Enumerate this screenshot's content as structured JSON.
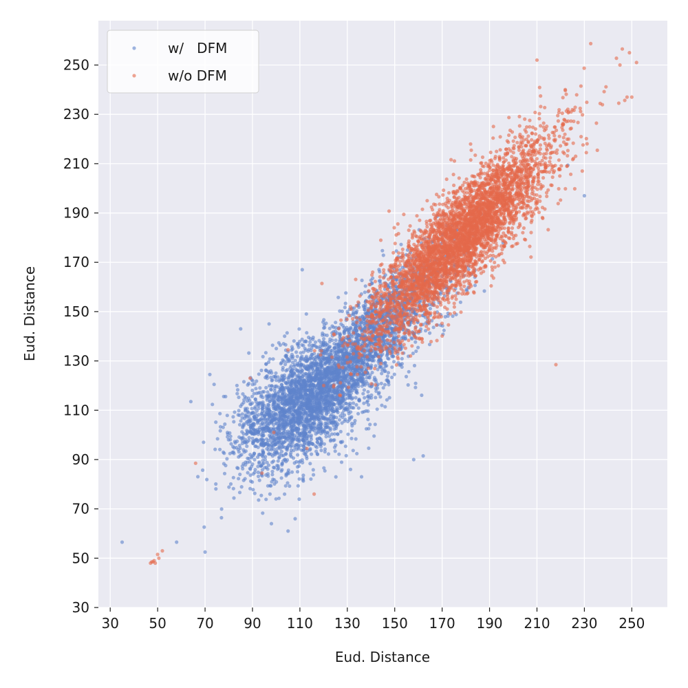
{
  "chart_data": {
    "type": "scatter",
    "xlabel": "Eud. Distance",
    "ylabel": "Eud. Distance",
    "xlim": [
      25,
      265
    ],
    "ylim": [
      30,
      268
    ],
    "xticks": [
      30,
      50,
      70,
      90,
      110,
      130,
      150,
      170,
      190,
      210,
      230,
      250
    ],
    "yticks": [
      30,
      50,
      70,
      90,
      110,
      130,
      150,
      170,
      190,
      210,
      230,
      250
    ],
    "xtick_labels": [
      "30",
      "50",
      "70",
      "90",
      "110",
      "130",
      "150",
      "170",
      "190",
      "210",
      "230",
      "250"
    ],
    "ytick_labels": [
      "30",
      "50",
      "70",
      "90",
      "110",
      "130",
      "150",
      "170",
      "190",
      "210",
      "230",
      "250"
    ],
    "grid": true,
    "legend_position": "top-left",
    "colors": {
      "w_dfm": "#5f83cb",
      "wo_dfm": "#e4694b",
      "background": "#eaeaf2",
      "grid": "#ffffff"
    },
    "series": [
      {
        "name": "w/   DFM",
        "color": "#5f83cb",
        "cloud": {
          "points": 2600,
          "mean": [
            112,
            113
          ],
          "sd": [
            15,
            14
          ],
          "correlation": 0.55,
          "seed": 7,
          "plus_cloud_from": [
            120,
            160,
            1800
          ]
        },
        "points": [
          [
            35,
            56.5
          ],
          [
            70,
            52.5
          ],
          [
            58,
            56.5
          ],
          [
            105,
            61
          ],
          [
            108,
            66
          ],
          [
            98,
            64
          ],
          [
            158,
            90
          ],
          [
            162,
            91.5
          ],
          [
            136,
            83
          ],
          [
            230,
            197
          ],
          [
            64,
            113.5
          ],
          [
            72,
            124.5
          ],
          [
            85,
            143
          ],
          [
            97,
            145
          ],
          [
            111,
            167
          ]
        ]
      },
      {
        "name": "w/o DFM",
        "color": "#e4694b",
        "cloud": {
          "points": 4400,
          "mean": [
            178,
            180
          ],
          "sd": [
            19,
            20
          ],
          "correlation": 0.86,
          "seed": 11
        },
        "points": [
          [
            47,
            48
          ],
          [
            48,
            48.5
          ],
          [
            48.5,
            49
          ],
          [
            49,
            48
          ],
          [
            47.5,
            48.5
          ],
          [
            50,
            51.5
          ],
          [
            50.5,
            50
          ],
          [
            52,
            53
          ],
          [
            66,
            88.5
          ],
          [
            94,
            84.5
          ],
          [
            99,
            101
          ],
          [
            113,
            94.5
          ],
          [
            116,
            76
          ],
          [
            218,
            128.5
          ],
          [
            210,
            252
          ],
          [
            246,
            256.5
          ],
          [
            249,
            255
          ],
          [
            250,
            237
          ],
          [
            252,
            251
          ],
          [
            245,
            250
          ],
          [
            248,
            237
          ],
          [
            89,
            123
          ],
          [
            105,
            134.5
          ]
        ]
      }
    ]
  }
}
